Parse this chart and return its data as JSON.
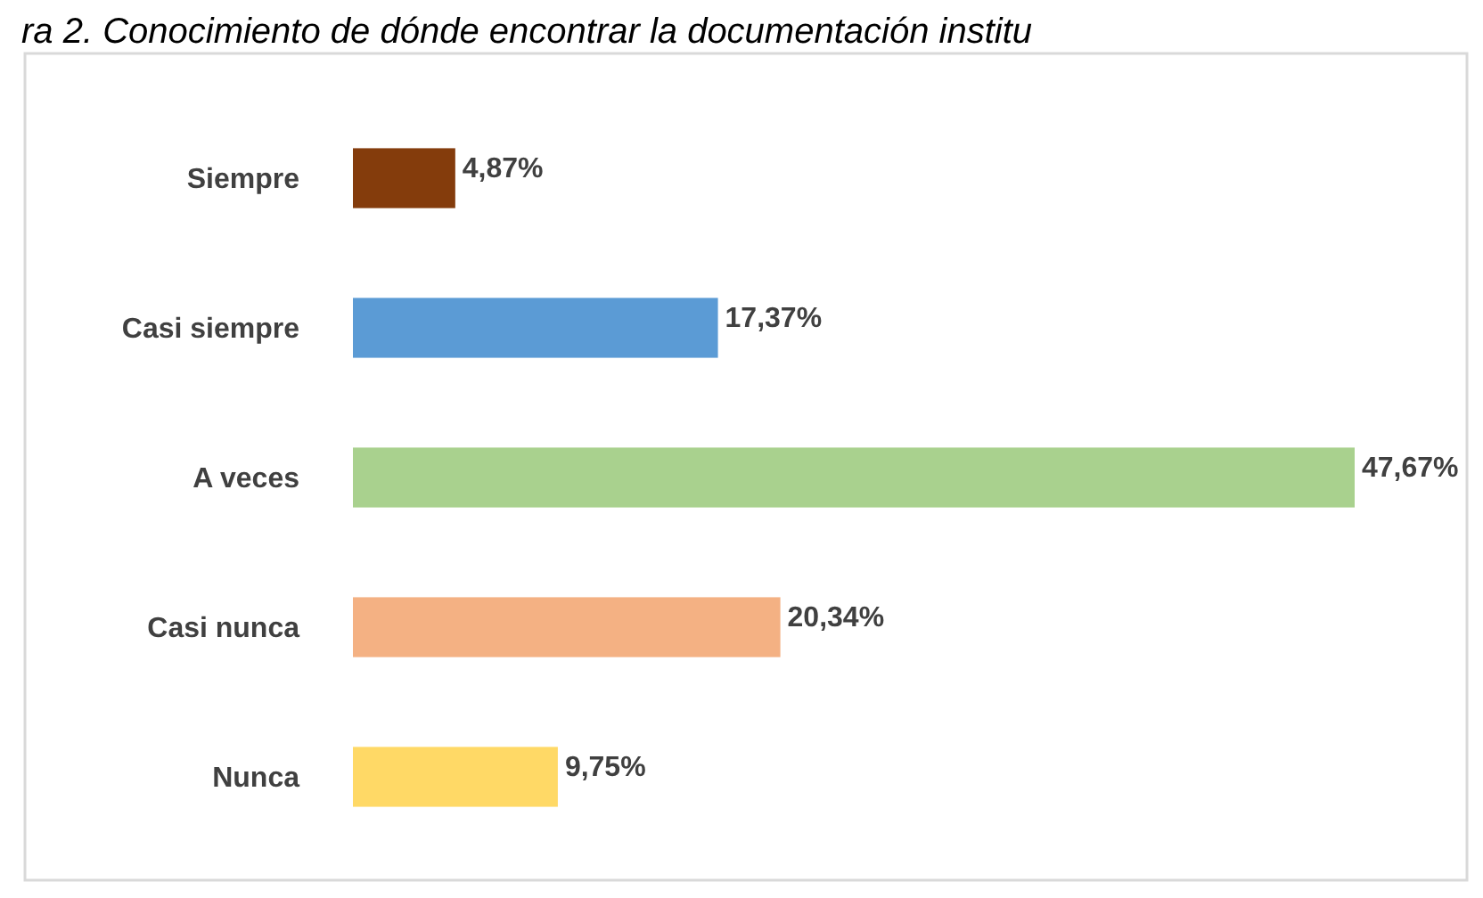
{
  "chart_data": {
    "type": "bar",
    "orientation": "horizontal",
    "title": "ra 2. Conocimiento de dónde encontrar la documentación institu",
    "categories": [
      "Siempre",
      "Casi siempre",
      "A veces",
      "Casi nunca",
      "Nunca"
    ],
    "values": [
      4.87,
      17.37,
      47.67,
      20.34,
      9.75
    ],
    "colors": [
      "#843c0c",
      "#5b9bd5",
      "#a9d18e",
      "#f4b183",
      "#ffd966"
    ],
    "value_labels": [
      "4,87%",
      "17,37%",
      "47,67%",
      "20,34%",
      "9,75%"
    ]
  }
}
